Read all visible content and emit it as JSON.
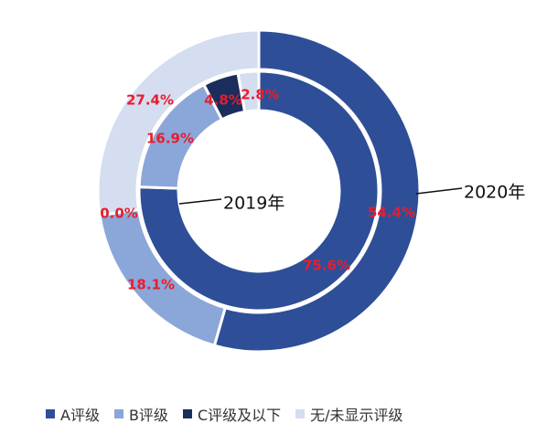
{
  "chart_data": {
    "type": "pie",
    "variant": "nested-donut",
    "legend_position": "bottom",
    "categories": [
      "A评级",
      "B评级",
      "C评级及以下",
      "无/未显示评级"
    ],
    "colors": [
      "#2e4f97",
      "#8ba6d8",
      "#1b2d5c",
      "#d5ddf0"
    ],
    "series": [
      {
        "ring": "outer",
        "name": "2020年",
        "values": [
          54.4,
          18.1,
          0.0,
          27.4
        ],
        "labels": [
          "54.4%",
          "18.1%",
          "0.0%",
          "27.4%"
        ]
      },
      {
        "ring": "inner",
        "name": "2019年",
        "values": [
          75.6,
          16.9,
          4.8,
          2.8
        ],
        "labels": [
          "75.6%",
          "16.9%",
          "4.8%",
          "2.8%"
        ]
      }
    ]
  }
}
